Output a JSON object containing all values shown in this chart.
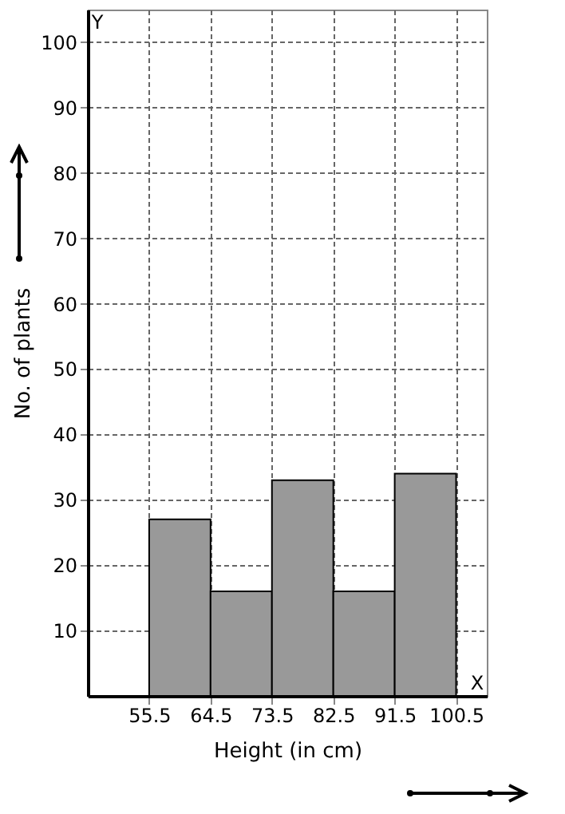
{
  "chart_data": {
    "type": "histogram",
    "xlabel": "Height (in cm)",
    "ylabel": "No. of plants",
    "bins": [
      55.5,
      64.5,
      73.5,
      82.5,
      91.5,
      100.5
    ],
    "values": [
      27,
      16,
      33,
      16,
      34
    ],
    "color": "#999999",
    "xlim": [
      46.5,
      105
    ],
    "xticks": [
      55.5,
      64.5,
      73.5,
      82.5,
      91.5,
      100.5
    ],
    "ylim": [
      0,
      105
    ],
    "yticks": [
      10,
      20,
      30,
      40,
      50,
      60,
      70,
      80,
      90,
      100
    ],
    "grid": true,
    "annotations": [
      "Y",
      "X"
    ]
  }
}
